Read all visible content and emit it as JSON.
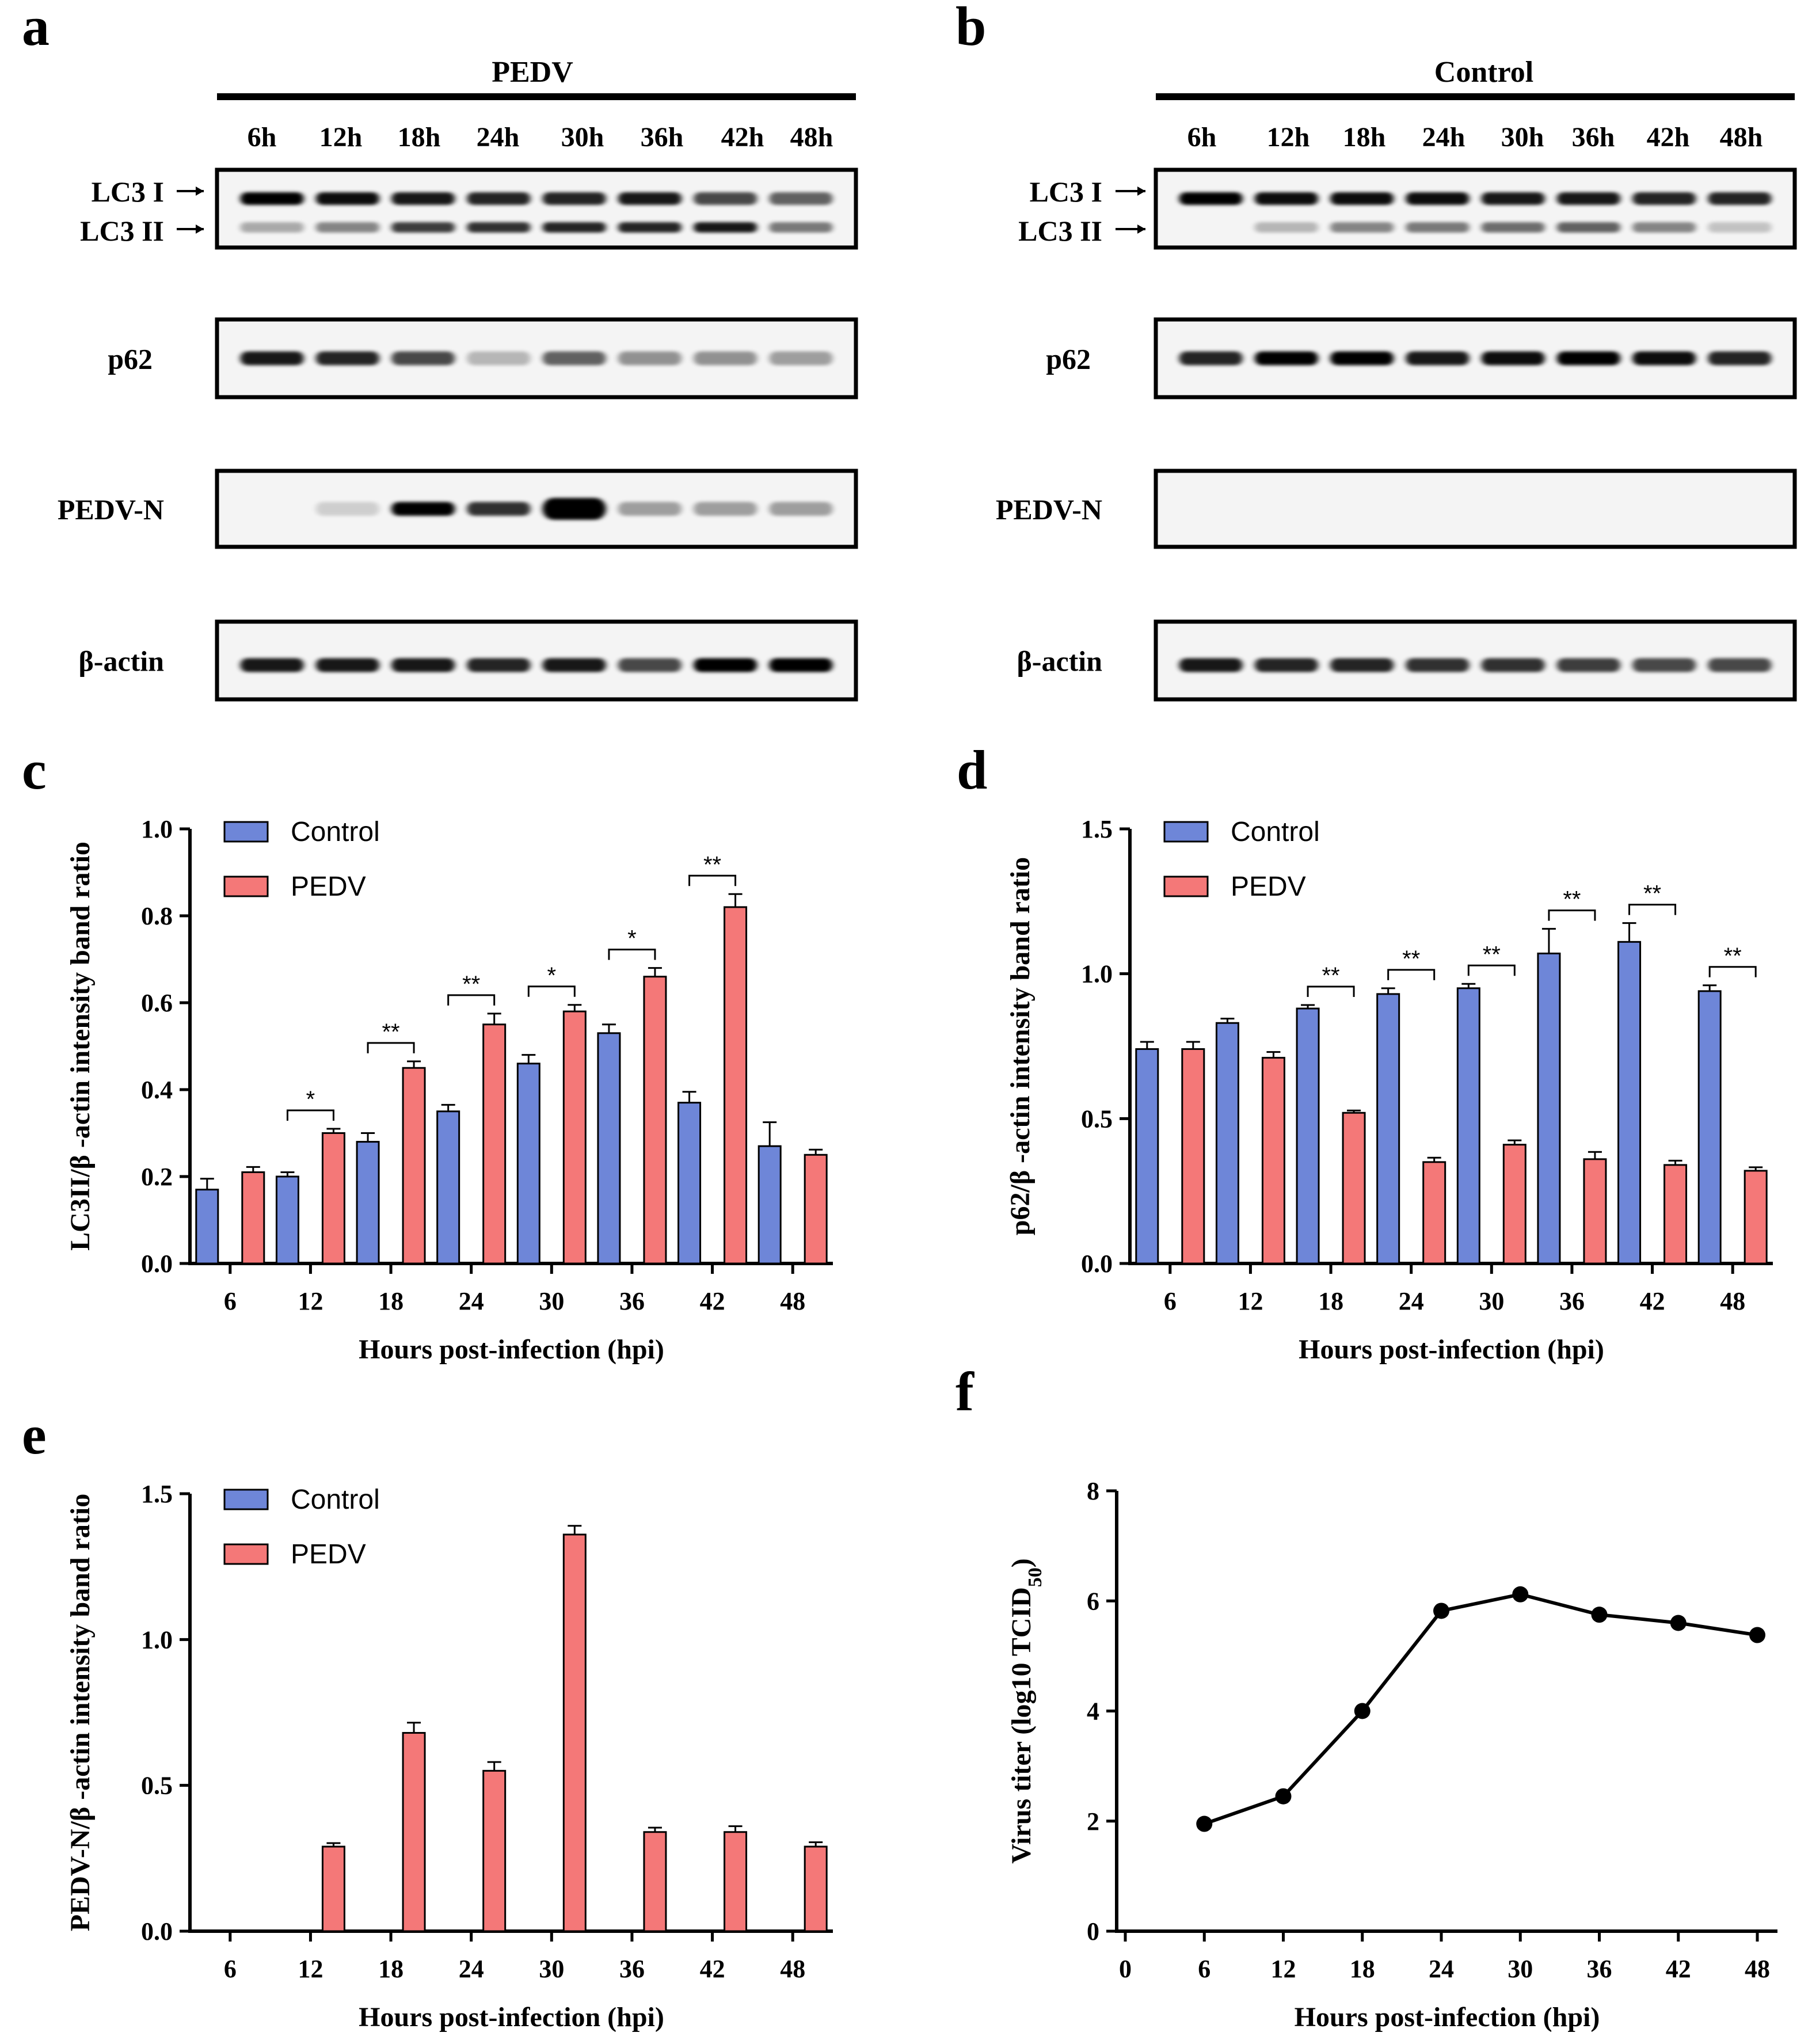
{
  "colors": {
    "control": "#6e86d8",
    "pedv": "#f47878",
    "axis": "#000000"
  },
  "blots": [
    {
      "panel": "a",
      "title": "PEDV",
      "times": [
        "6h",
        "12h",
        "18h",
        "24h",
        "30h",
        "36h",
        "42h",
        "48h"
      ],
      "rows": [
        {
          "label": "LC3 I",
          "label2": "LC3 II",
          "type": "lc3"
        },
        {
          "label": "p62",
          "type": "single"
        },
        {
          "label": "PEDV-N",
          "type": "single"
        },
        {
          "label": "β-actin",
          "type": "single"
        }
      ]
    },
    {
      "panel": "b",
      "title": "Control",
      "times": [
        "6h",
        "12h",
        "18h",
        "24h",
        "30h",
        "36h",
        "42h",
        "48h"
      ],
      "rows": [
        {
          "label": "LC3 I",
          "label2": "LC3 II",
          "type": "lc3"
        },
        {
          "label": "p62",
          "type": "single"
        },
        {
          "label": "PEDV-N",
          "type": "single"
        },
        {
          "label": "β-actin",
          "type": "single"
        }
      ]
    }
  ],
  "chart_data": [
    {
      "panel": "c",
      "type": "bar",
      "categories": [
        "6",
        "12",
        "18",
        "24",
        "30",
        "36",
        "42",
        "48"
      ],
      "series": [
        {
          "name": "Control",
          "values": [
            0.17,
            0.2,
            0.28,
            0.35,
            0.46,
            0.53,
            0.37,
            0.27
          ],
          "errors": [
            0.025,
            0.01,
            0.02,
            0.015,
            0.02,
            0.02,
            0.025,
            0.055
          ]
        },
        {
          "name": "PEDV",
          "values": [
            0.21,
            0.3,
            0.45,
            0.55,
            0.58,
            0.66,
            0.82,
            0.25
          ],
          "errors": [
            0.012,
            0.01,
            0.015,
            0.025,
            0.015,
            0.02,
            0.03,
            0.012
          ]
        }
      ],
      "significance": [
        "",
        "*",
        "**",
        "**",
        "*",
        "*",
        "**",
        ""
      ],
      "xlabel": "Hours post-infection (hpi)",
      "ylabel": "LC3II/β -actin intensity band ratio",
      "ylim": [
        0,
        1.0
      ],
      "yticks": [
        "0.0",
        "0.2",
        "0.4",
        "0.6",
        "0.8",
        "1.0"
      ],
      "legend": [
        "Control",
        "PEDV"
      ]
    },
    {
      "panel": "d",
      "type": "bar",
      "categories": [
        "6",
        "12",
        "18",
        "24",
        "30",
        "36",
        "42",
        "48"
      ],
      "series": [
        {
          "name": "Control",
          "values": [
            0.74,
            0.83,
            0.88,
            0.93,
            0.95,
            1.07,
            1.11,
            0.94
          ],
          "errors": [
            0.025,
            0.015,
            0.012,
            0.02,
            0.015,
            0.085,
            0.065,
            0.02
          ]
        },
        {
          "name": "PEDV",
          "values": [
            0.74,
            0.71,
            0.52,
            0.35,
            0.41,
            0.36,
            0.34,
            0.32
          ],
          "errors": [
            0.025,
            0.02,
            0.008,
            0.015,
            0.015,
            0.025,
            0.015,
            0.012
          ]
        }
      ],
      "significance": [
        "",
        "",
        "**",
        "**",
        "**",
        "**",
        "**",
        "**"
      ],
      "xlabel": "Hours post-infection (hpi)",
      "ylabel": "p62/β -actin intensity band ratio",
      "ylim": [
        0,
        1.5
      ],
      "yticks": [
        "0.0",
        "0.5",
        "1.0",
        "1.5"
      ],
      "legend": [
        "Control",
        "PEDV"
      ]
    },
    {
      "panel": "e",
      "type": "bar",
      "categories": [
        "6",
        "12",
        "18",
        "24",
        "30",
        "36",
        "42",
        "48"
      ],
      "series": [
        {
          "name": "Control",
          "values": [
            0,
            0,
            0,
            0,
            0,
            0,
            0,
            0
          ],
          "errors": [
            0,
            0,
            0,
            0,
            0,
            0,
            0,
            0
          ]
        },
        {
          "name": "PEDV",
          "values": [
            0,
            0.29,
            0.68,
            0.55,
            1.36,
            0.34,
            0.34,
            0.29
          ],
          "errors": [
            0,
            0.012,
            0.035,
            0.03,
            0.03,
            0.015,
            0.02,
            0.015
          ]
        }
      ],
      "significance": [
        "",
        "",
        "",
        "",
        "",
        "",
        "",
        ""
      ],
      "xlabel": "Hours post-infection (hpi)",
      "ylabel": "PEDV-N/β -actin intensity band ratio",
      "ylim": [
        0,
        1.5
      ],
      "yticks": [
        "0.0",
        "0.5",
        "1.0",
        "1.5"
      ],
      "legend": [
        "Control",
        "PEDV"
      ]
    },
    {
      "panel": "f",
      "type": "line",
      "x": [
        6,
        12,
        18,
        24,
        30,
        36,
        42,
        48
      ],
      "y": [
        1.95,
        2.45,
        4.0,
        5.82,
        6.12,
        5.75,
        5.6,
        5.38
      ],
      "xlabel": "Hours post-infection (hpi)",
      "ylabel": "Virus titer (log10 TCID",
      "ylabel_sub": "50",
      "ylabel_close": ")",
      "xlim": [
        0,
        48
      ],
      "ylim": [
        0,
        8
      ],
      "xticks": [
        "0",
        "6",
        "12",
        "18",
        "24",
        "30",
        "36",
        "42",
        "48"
      ],
      "yticks": [
        "0",
        "2",
        "4",
        "6",
        "8"
      ]
    }
  ]
}
